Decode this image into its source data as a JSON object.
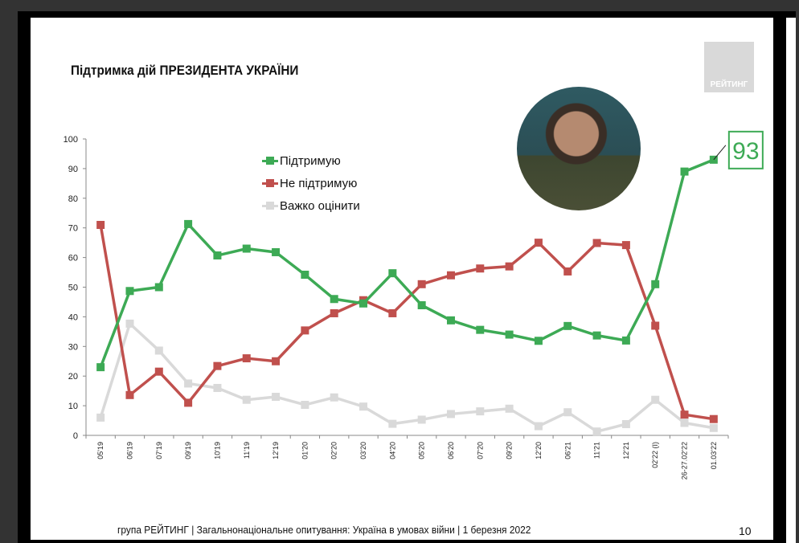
{
  "title": "Підтримка дій ПРЕЗИДЕНТА УКРАЇНИ",
  "logo_text": "РЕЙТИНГ",
  "footer": "група РЕЙТИНГ | Загальнонаціональне опитування: Україна в умовах війни | 1 березня 2022",
  "page_number": "10",
  "chart_data": {
    "type": "line",
    "title": "",
    "xlabel": "",
    "ylabel": "",
    "ylim": [
      0,
      100
    ],
    "yticks": [
      "0",
      "10",
      "20",
      "30",
      "40",
      "50",
      "60",
      "70",
      "80",
      "90",
      "100"
    ],
    "grid": false,
    "legend_position": "top-center",
    "categories": [
      "05'19",
      "06'19",
      "07'19",
      "09'19",
      "10'19",
      "11'19",
      "12'19",
      "01'20",
      "02'20",
      "03'20",
      "04'20",
      "05'20",
      "06'20",
      "07'20",
      "09'20",
      "12'20",
      "06'21",
      "11'21",
      "12'21",
      "02'22 (I)",
      "26-27.02'22",
      "01.03'22"
    ],
    "series": [
      {
        "name": "Підтримую",
        "color": "#3daa55",
        "values": [
          23,
          48.7,
          50,
          71.3,
          60.7,
          63,
          61.8,
          54.2,
          46,
          44.5,
          54.7,
          43.9,
          38.8,
          35.6,
          34,
          31.9,
          36.9,
          33.7,
          32,
          51,
          89,
          93
        ]
      },
      {
        "name": "Не підтримую",
        "color": "#c0504d",
        "values": [
          71,
          13.6,
          21.5,
          11,
          23.4,
          26,
          25,
          35.4,
          41.2,
          45.6,
          41.2,
          51,
          54,
          56.3,
          57,
          65,
          55.3,
          64.9,
          64.2,
          37,
          7,
          5.5
        ]
      },
      {
        "name": "Важко оцінити",
        "color": "#d9d9d9",
        "values": [
          6,
          37.7,
          28.6,
          17.5,
          16,
          12,
          13,
          10.3,
          12.8,
          9.7,
          3.9,
          5.3,
          7.2,
          8.1,
          9,
          3.1,
          7.8,
          1.3,
          3.8,
          12,
          4.2,
          2.5
        ]
      }
    ],
    "annotation": {
      "text": "93",
      "series": "Підтримую",
      "category": "01.03'22",
      "color": "#3daa55"
    }
  }
}
